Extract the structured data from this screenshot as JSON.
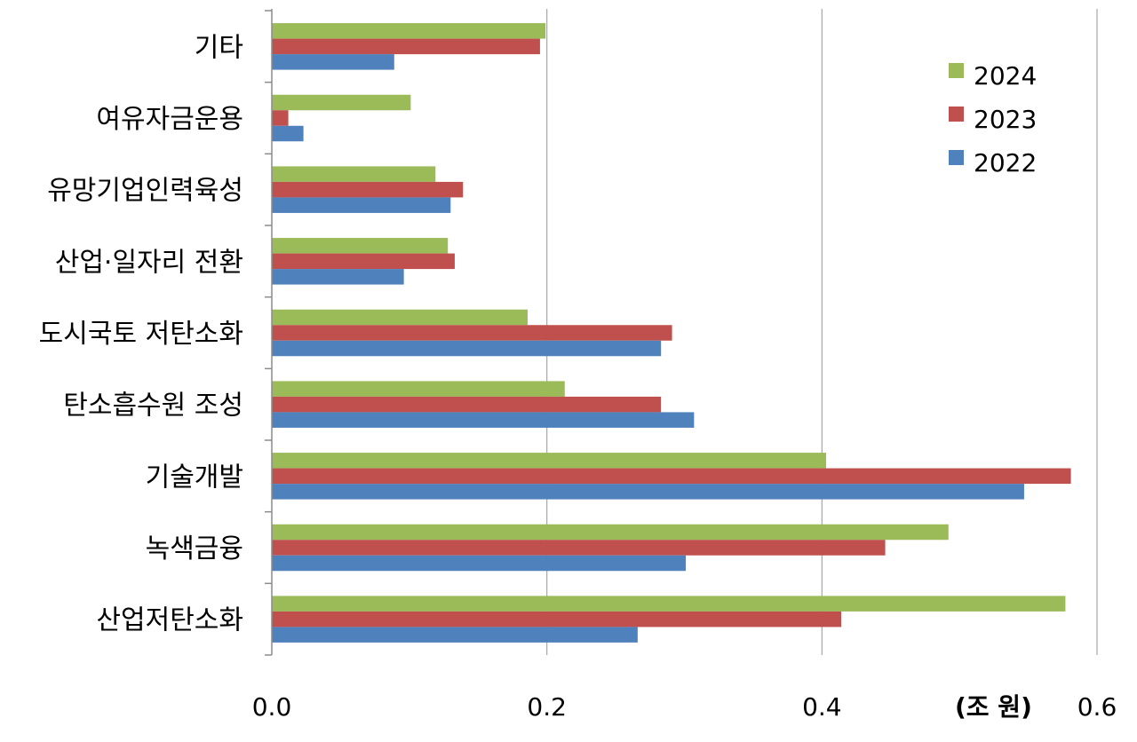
{
  "chart_data": {
    "type": "bar",
    "orientation": "horizontal",
    "categories": [
      "기타",
      "여유자금운용",
      "유망기업인력육성",
      "산업·일자리 전환",
      "도시국토 저탄소화",
      "탄소흡수원 조성",
      "기술개발",
      "녹색금융",
      "산업저탄소화"
    ],
    "series": [
      {
        "name": "2024",
        "color": "#9BBB59",
        "values": [
          0.199,
          0.101,
          0.119,
          0.128,
          0.186,
          0.213,
          0.403,
          0.492,
          0.577
        ]
      },
      {
        "name": "2023",
        "color": "#C0504D",
        "values": [
          0.195,
          0.012,
          0.139,
          0.133,
          0.291,
          0.283,
          0.581,
          0.446,
          0.414
        ]
      },
      {
        "name": "2022",
        "color": "#4F81BD",
        "values": [
          0.089,
          0.023,
          0.13,
          0.096,
          0.283,
          0.307,
          0.547,
          0.301,
          0.266
        ]
      }
    ],
    "xlim": [
      0,
      0.6
    ],
    "xticks": [
      "0.0",
      "0.2",
      "0.4",
      "0.6"
    ],
    "unit_label": "(조 원)",
    "legend_position": "top-right",
    "grid": "vertical"
  }
}
